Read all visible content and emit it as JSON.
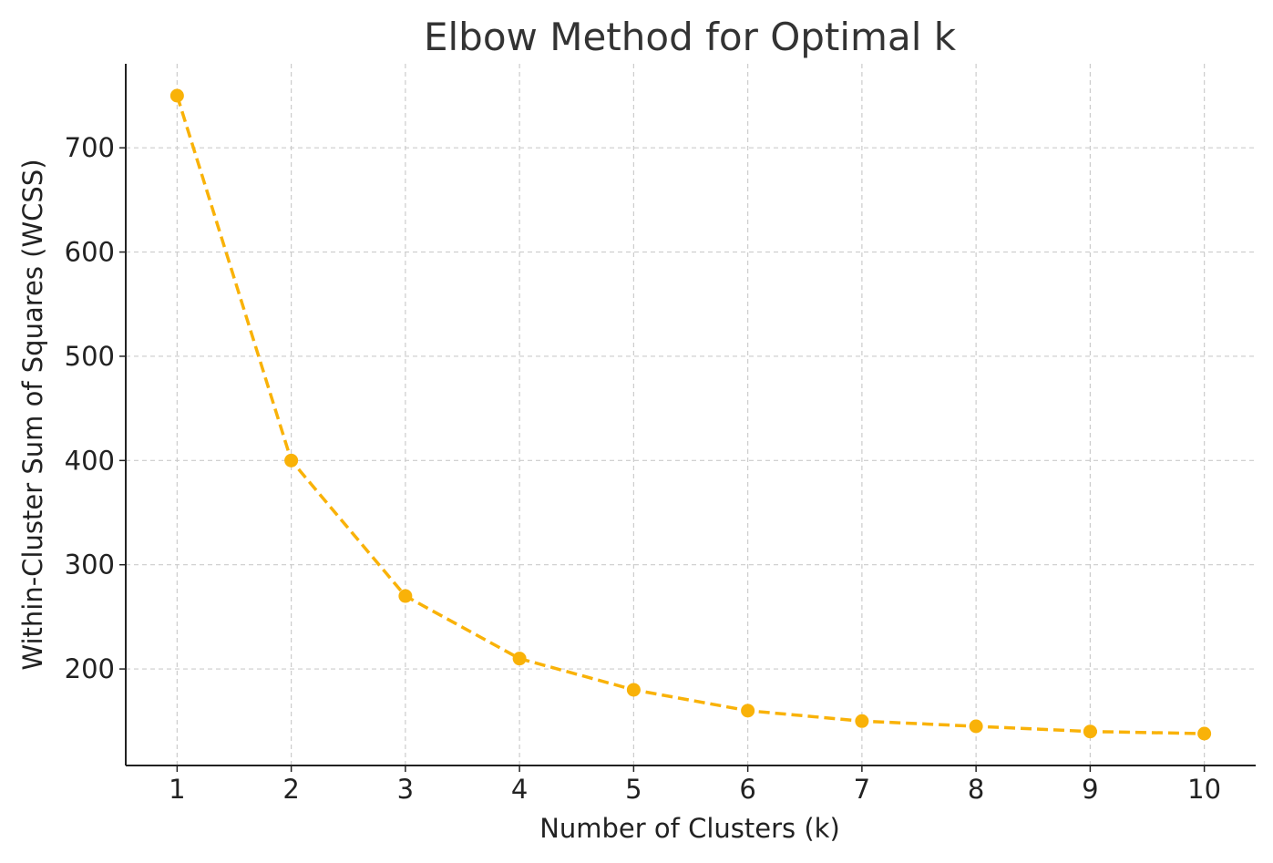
{
  "chart_data": {
    "type": "line",
    "title": "Elbow Method for Optimal k",
    "xlabel": "Number of Clusters (k)",
    "ylabel": "Within-Cluster Sum of Squares (WCSS)",
    "x": [
      1,
      2,
      3,
      4,
      5,
      6,
      7,
      8,
      9,
      10
    ],
    "series": [
      {
        "values": [
          750,
          400,
          270,
          210,
          180,
          160,
          150,
          145,
          140,
          138
        ],
        "color": "#F9B208",
        "line_style": "dashed",
        "marker": "circle"
      }
    ],
    "xlim": [
      0.55,
      10.45
    ],
    "ylim": [
      107.4,
      780.6
    ],
    "xticks": [
      1,
      2,
      3,
      4,
      5,
      6,
      7,
      8,
      9,
      10
    ],
    "yticks": [
      200,
      300,
      400,
      500,
      600,
      700
    ],
    "grid": true,
    "grid_style": "dashed",
    "grid_color": "#cccccc",
    "axis_color": "#222222"
  }
}
